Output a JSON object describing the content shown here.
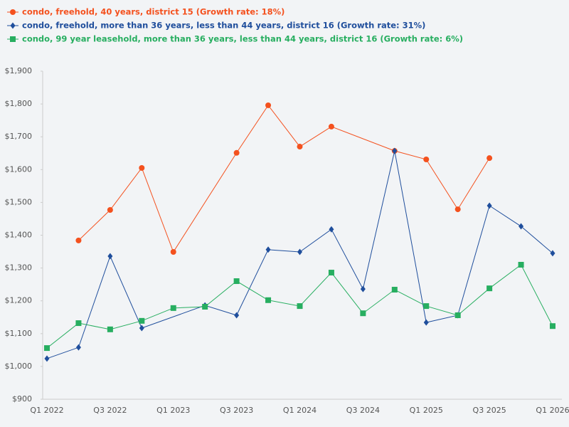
{
  "chart_data": {
    "type": "line",
    "categories": [
      "Q1 2022",
      null,
      "Q3 2022",
      null,
      "Q1 2023",
      null,
      "Q3 2023",
      null,
      "Q1 2024",
      null,
      "Q3 2024",
      null,
      "Q1 2025",
      null,
      "Q3 2025",
      null,
      "Q1 2026"
    ],
    "series": [
      {
        "name": "condo, freehold, 40 years, district 15 (Growth rate: 18%)",
        "color": "#f4511e",
        "marker": "circle",
        "values": [
          null,
          1384,
          1477,
          1605,
          1349,
          null,
          1651,
          1796,
          1670,
          1731,
          null,
          1657,
          1631,
          1479,
          1635,
          null,
          null
        ]
      },
      {
        "name": "condo, freehold, more than 36 years, less than 44 years, district 16 (Growth rate: 31%)",
        "color": "#1f4e9c",
        "marker": "diamond",
        "values": [
          1024,
          1058,
          1336,
          1117,
          null,
          1186,
          1156,
          1356,
          1349,
          1418,
          1236,
          1657,
          1134,
          1156,
          1490,
          1427,
          1345
        ]
      },
      {
        "name": "condo, 99 year leasehold, more than 36 years, less than 44 years, district 16 (Growth rate: 6%)",
        "color": "#27ae60",
        "marker": "square",
        "values": [
          1056,
          1132,
          1113,
          1139,
          1178,
          1182,
          1260,
          1202,
          1184,
          1286,
          1162,
          1234,
          1184,
          1156,
          1238,
          1310,
          1123
        ]
      }
    ],
    "connect_gaps": true,
    "ylim": [
      900,
      1900
    ],
    "yticks": [
      {
        "value": 900,
        "label": "$900"
      },
      {
        "value": 1000,
        "label": "$1,000"
      },
      {
        "value": 1100,
        "label": "$1,100"
      },
      {
        "value": 1200,
        "label": "$1,200"
      },
      {
        "value": 1300,
        "label": "$1,300"
      },
      {
        "value": 1400,
        "label": "$1,400"
      },
      {
        "value": 1500,
        "label": "$1,500"
      },
      {
        "value": 1600,
        "label": "$1,600"
      },
      {
        "value": 1700,
        "label": "$1,700"
      },
      {
        "value": 1800,
        "label": "$1,800"
      },
      {
        "value": 1900,
        "label": "$1,900"
      }
    ],
    "grid": false,
    "legend": "top-left"
  }
}
